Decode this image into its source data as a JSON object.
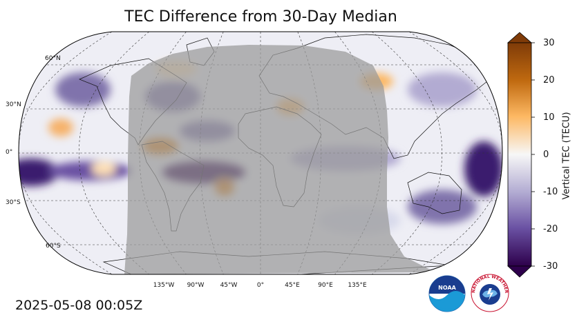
{
  "title": "TEC Difference from 30-Day Median",
  "timestamp": "2025-05-08 00:05Z",
  "map": {
    "projection": "Robinson",
    "night_shading": "gray",
    "lat_labels": [
      "60°N",
      "30°N",
      "0°",
      "30°S",
      "60°S"
    ],
    "lon_labels": [
      "135°W",
      "90°W",
      "45°W",
      "0°",
      "45°E",
      "90°E",
      "135°E"
    ]
  },
  "colorbar": {
    "label": "Vertical TEC (TECU)",
    "ticks": [
      "30",
      "20",
      "10",
      "0",
      "-10",
      "-20",
      "-30"
    ],
    "range": [
      -30,
      30
    ],
    "colors": {
      "high": "#7f3b08",
      "mid": "#f7f7f7",
      "low": "#2d004b"
    }
  },
  "logos": {
    "noaa": "NOAA",
    "nws": "NATIONAL WEATHER SERVICE"
  }
}
